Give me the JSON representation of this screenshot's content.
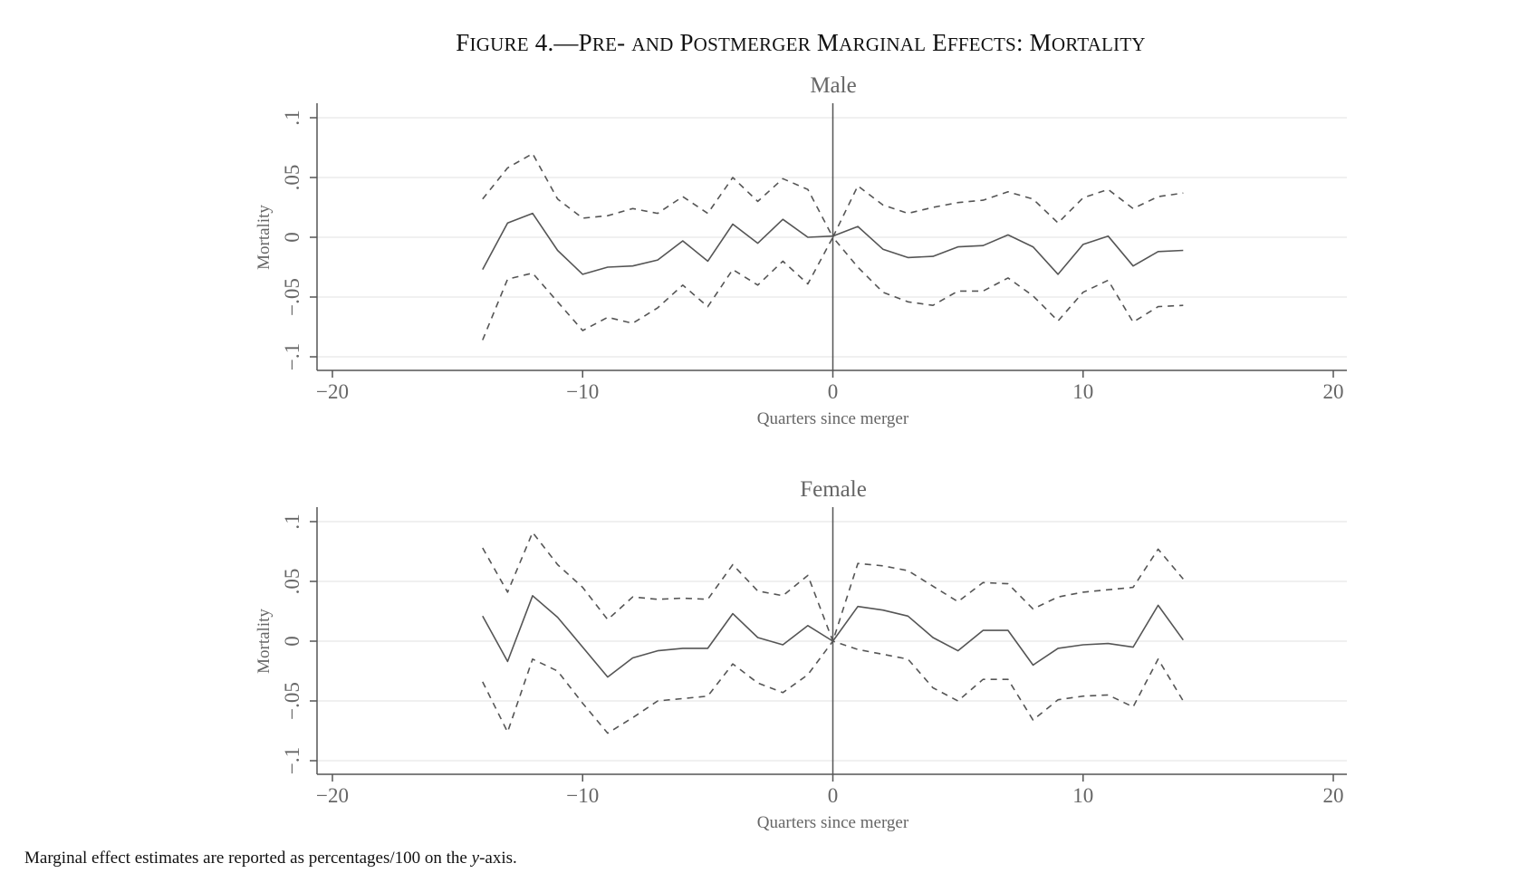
{
  "figure": {
    "title": "Figure 4.—Pre- and Postmerger Marginal Effects: Mortality",
    "title_main": "F",
    "footnote_before": "Marginal effect estimates are reported as percentages/100 on the ",
    "footnote_var": "y",
    "footnote_after": "-axis."
  },
  "colors": {
    "line": "#555555",
    "axis": "#555555",
    "grid": "#e6e6e6",
    "text": "#666666"
  },
  "chart_data": [
    {
      "type": "line",
      "title": "Male",
      "xlabel": "Quarters since merger",
      "ylabel": "Mortality",
      "xlim": [
        -20,
        20
      ],
      "ylim": [
        -0.1,
        0.1
      ],
      "x_ticks": [
        -20,
        -10,
        0,
        10,
        20
      ],
      "x_tick_labels": [
        "−20",
        "−10",
        "0",
        "10",
        "20"
      ],
      "y_ticks": [
        -0.1,
        -0.05,
        0,
        0.05,
        0.1
      ],
      "y_tick_labels": [
        "−.1",
        "−.05",
        "0",
        ".05",
        ".1"
      ],
      "grid": true,
      "vertical_reference_line": 0,
      "x": [
        -14,
        -13,
        -12,
        -11,
        -10,
        -9,
        -8,
        -7,
        -6,
        -5,
        -4,
        -3,
        -2,
        -1,
        0,
        1,
        2,
        3,
        4,
        5,
        6,
        7,
        8,
        9,
        10,
        11,
        12,
        13,
        14
      ],
      "series": [
        {
          "style": "solid",
          "values": [
            -0.027,
            0.012,
            0.02,
            -0.011,
            -0.031,
            -0.025,
            -0.024,
            -0.019,
            -0.003,
            -0.02,
            0.011,
            -0.005,
            0.015,
            0.0,
            0.001,
            0.009,
            -0.01,
            -0.017,
            -0.016,
            -0.008,
            -0.007,
            0.002,
            -0.008,
            -0.031,
            -0.006,
            0.001,
            -0.024,
            -0.012,
            -0.011
          ]
        },
        {
          "style": "dashed",
          "values": [
            0.032,
            0.058,
            0.07,
            0.032,
            0.016,
            0.018,
            0.024,
            0.02,
            0.034,
            0.02,
            0.05,
            0.03,
            0.049,
            0.04,
            0.0,
            0.043,
            0.027,
            0.02,
            0.025,
            0.029,
            0.031,
            0.038,
            0.032,
            0.012,
            0.033,
            0.04,
            0.024,
            0.034,
            0.037
          ]
        },
        {
          "style": "dashed",
          "values": [
            -0.086,
            -0.035,
            -0.03,
            -0.054,
            -0.078,
            -0.067,
            -0.072,
            -0.059,
            -0.04,
            -0.058,
            -0.027,
            -0.04,
            -0.02,
            -0.039,
            0.0,
            -0.025,
            -0.046,
            -0.054,
            -0.057,
            -0.045,
            -0.045,
            -0.034,
            -0.049,
            -0.07,
            -0.046,
            -0.036,
            -0.071,
            -0.058,
            -0.057
          ]
        }
      ]
    },
    {
      "type": "line",
      "title": "Female",
      "xlabel": "Quarters since merger",
      "ylabel": "Mortality",
      "xlim": [
        -20,
        20
      ],
      "ylim": [
        -0.1,
        0.1
      ],
      "x_ticks": [
        -20,
        -10,
        0,
        10,
        20
      ],
      "x_tick_labels": [
        "−20",
        "−10",
        "0",
        "10",
        "20"
      ],
      "y_ticks": [
        -0.1,
        -0.05,
        0,
        0.05,
        0.1
      ],
      "y_tick_labels": [
        "−.1",
        "−.05",
        "0",
        ".05",
        ".1"
      ],
      "grid": true,
      "vertical_reference_line": 0,
      "x": [
        -14,
        -13,
        -12,
        -11,
        -10,
        -9,
        -8,
        -7,
        -6,
        -5,
        -4,
        -3,
        -2,
        -1,
        0,
        1,
        2,
        3,
        4,
        5,
        6,
        7,
        8,
        9,
        10,
        11,
        12,
        13,
        14
      ],
      "series": [
        {
          "style": "solid",
          "values": [
            0.021,
            -0.017,
            0.038,
            0.02,
            -0.005,
            -0.03,
            -0.014,
            -0.008,
            -0.006,
            -0.006,
            0.023,
            0.003,
            -0.003,
            0.013,
            0.0,
            0.029,
            0.026,
            0.021,
            0.003,
            -0.008,
            0.009,
            0.009,
            -0.02,
            -0.006,
            -0.003,
            -0.002,
            -0.005,
            0.03,
            0.001
          ]
        },
        {
          "style": "dashed",
          "values": [
            0.078,
            0.041,
            0.091,
            0.064,
            0.045,
            0.018,
            0.037,
            0.035,
            0.036,
            0.035,
            0.064,
            0.042,
            0.038,
            0.055,
            0.0,
            0.065,
            0.063,
            0.059,
            0.046,
            0.033,
            0.049,
            0.048,
            0.027,
            0.037,
            0.041,
            0.043,
            0.045,
            0.077,
            0.052
          ]
        },
        {
          "style": "dashed",
          "values": [
            -0.034,
            -0.076,
            -0.015,
            -0.025,
            -0.052,
            -0.077,
            -0.064,
            -0.05,
            -0.048,
            -0.046,
            -0.019,
            -0.035,
            -0.043,
            -0.028,
            0.0,
            -0.007,
            -0.011,
            -0.015,
            -0.039,
            -0.05,
            -0.032,
            -0.032,
            -0.066,
            -0.049,
            -0.046,
            -0.045,
            -0.055,
            -0.015,
            -0.05
          ]
        }
      ]
    }
  ]
}
